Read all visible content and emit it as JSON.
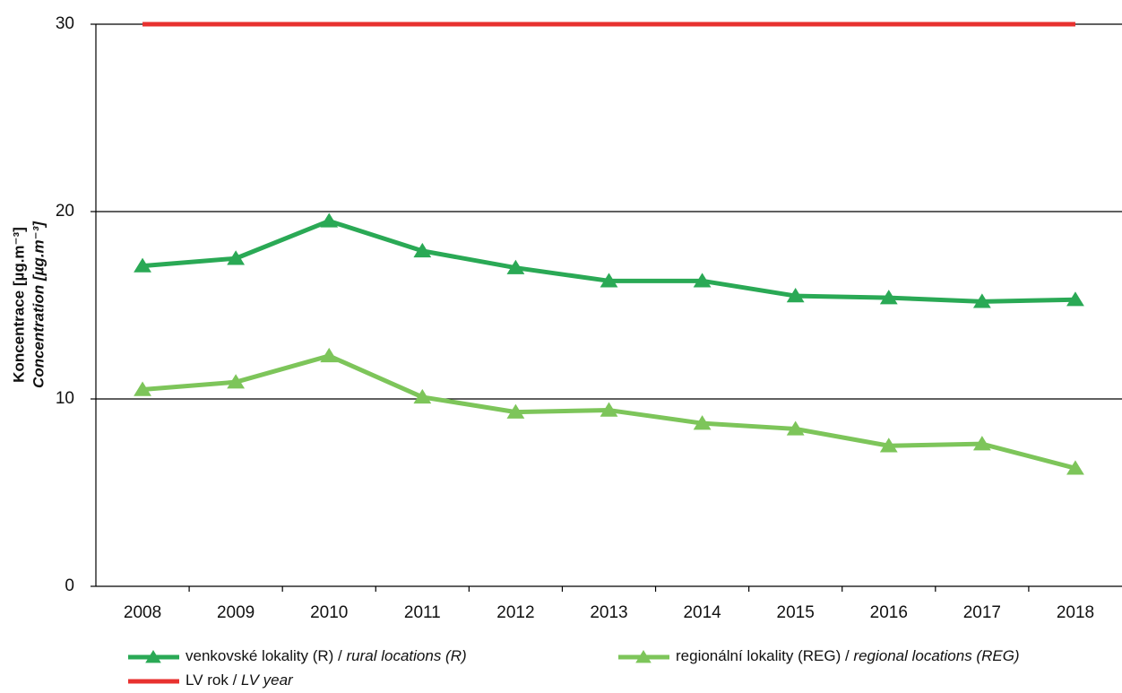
{
  "chart_data": {
    "type": "line",
    "ylabel": [
      "Koncentrace [µg.m⁻³]",
      "Concentration [µg.m⁻³]"
    ],
    "categories": [
      "2008",
      "2009",
      "2010",
      "2011",
      "2012",
      "2013",
      "2014",
      "2015",
      "2016",
      "2017",
      "2018"
    ],
    "series": [
      {
        "name": "venkovské lokality (R) / rural locations (R)",
        "color": "#2aa955",
        "marker": "triangle",
        "values": [
          17.1,
          17.5,
          19.5,
          17.9,
          17.0,
          16.3,
          16.3,
          15.5,
          15.4,
          15.2,
          15.3
        ]
      },
      {
        "name": "regionální lokality (REG) / regional locations (REG)",
        "color": "#7dc55a",
        "marker": "triangle",
        "values": [
          10.5,
          10.9,
          12.3,
          10.1,
          9.3,
          9.4,
          8.7,
          8.4,
          7.5,
          7.6,
          6.3
        ]
      },
      {
        "name": "LV rok / LV year",
        "color": "#e8312f",
        "marker": "none",
        "values": [
          30,
          30,
          30,
          30,
          30,
          30,
          30,
          30,
          30,
          30,
          30
        ]
      }
    ],
    "ylim": [
      0,
      30
    ],
    "yticks": [
      0,
      10,
      20,
      30
    ],
    "grid": true
  }
}
